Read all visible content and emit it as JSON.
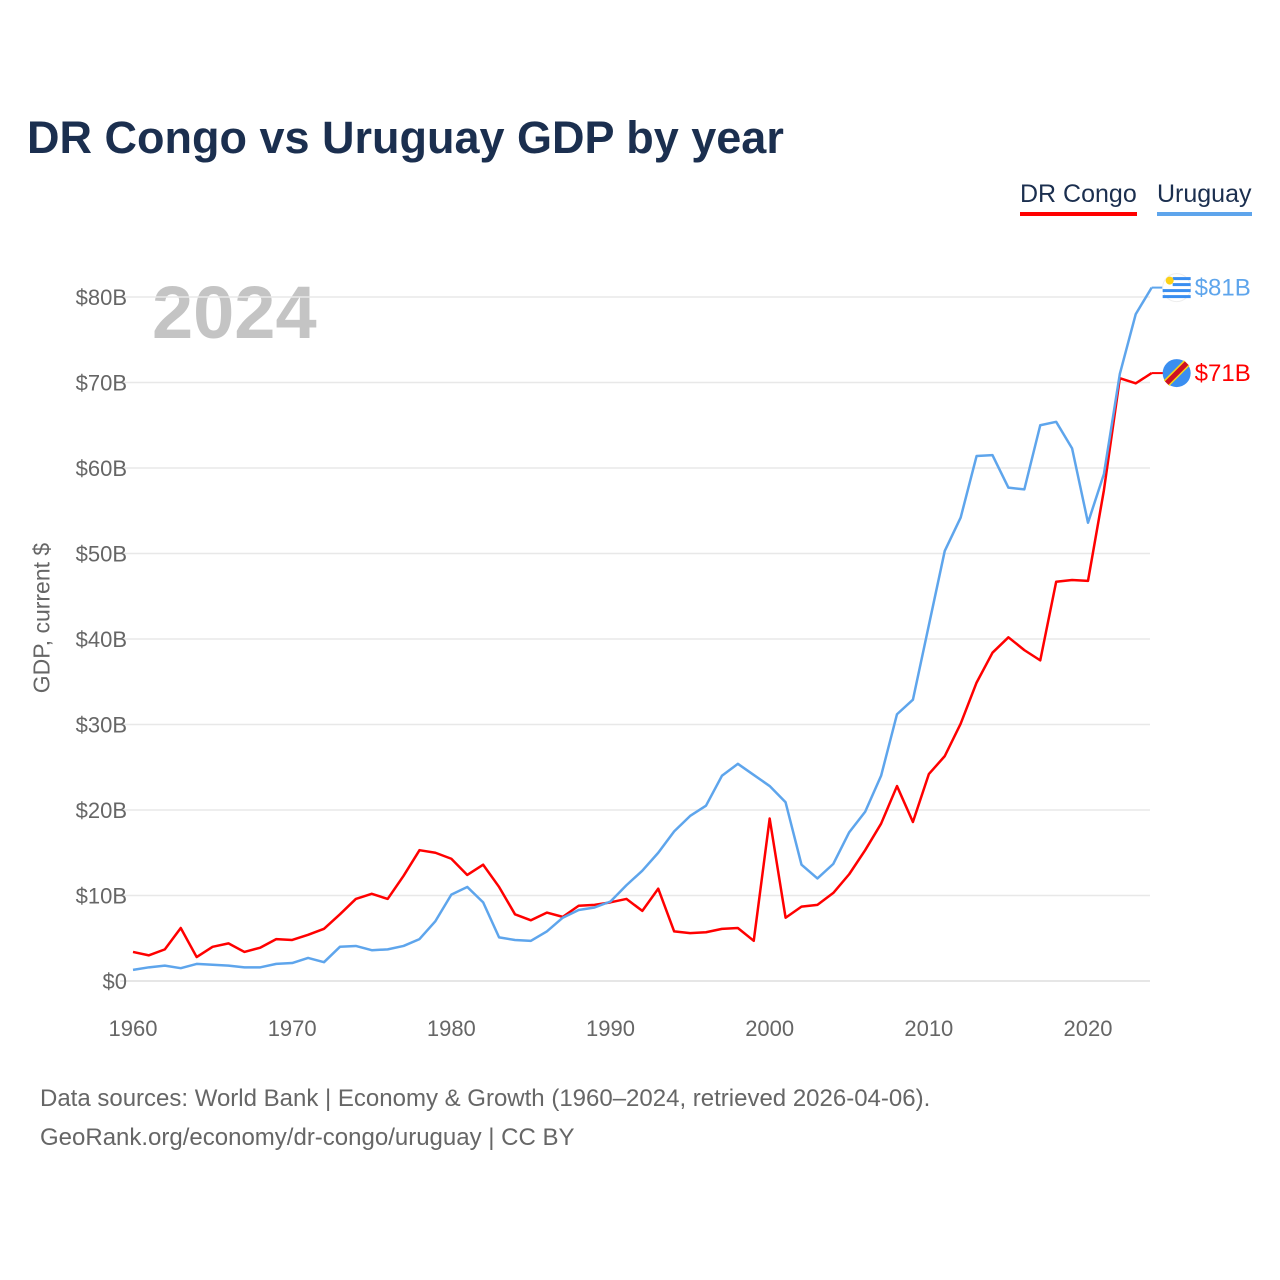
{
  "chart_data": {
    "type": "line",
    "title": "DR Congo vs Uruguay GDP by year",
    "ylabel": "GDP, current $",
    "xlabel": "",
    "current_year": "2024",
    "x_ticks": [
      "1960",
      "1970",
      "1980",
      "1990",
      "2000",
      "2010",
      "2020"
    ],
    "y_ticks": [
      "$0",
      "$10B",
      "$20B",
      "$30B",
      "$40B",
      "$50B",
      "$60B",
      "$70B",
      "$80B"
    ],
    "xlim": [
      1960,
      2024
    ],
    "ylim": [
      0,
      80
    ],
    "grid": true,
    "legend_placement": "top-right",
    "x": [
      1960,
      1961,
      1962,
      1963,
      1964,
      1965,
      1966,
      1967,
      1968,
      1969,
      1970,
      1971,
      1972,
      1973,
      1974,
      1975,
      1976,
      1977,
      1978,
      1979,
      1980,
      1981,
      1982,
      1983,
      1984,
      1985,
      1986,
      1987,
      1988,
      1989,
      1990,
      1991,
      1992,
      1993,
      1994,
      1995,
      1996,
      1997,
      1998,
      1999,
      2000,
      2001,
      2002,
      2003,
      2004,
      2005,
      2006,
      2007,
      2008,
      2009,
      2010,
      2011,
      2012,
      2013,
      2014,
      2015,
      2016,
      2017,
      2018,
      2019,
      2020,
      2021,
      2022,
      2023,
      2024
    ],
    "series": [
      {
        "name": "DR Congo",
        "color": "#ff0000",
        "end_label": "$71B",
        "values": [
          3.4,
          3.0,
          3.7,
          6.2,
          2.8,
          4.0,
          4.4,
          3.4,
          3.9,
          4.9,
          4.8,
          5.4,
          6.1,
          7.8,
          9.6,
          10.2,
          9.6,
          12.3,
          15.3,
          15.0,
          14.3,
          12.4,
          13.6,
          11.0,
          7.8,
          7.1,
          8.0,
          7.5,
          8.8,
          8.9,
          9.2,
          9.6,
          8.2,
          10.8,
          5.8,
          5.6,
          5.7,
          6.1,
          6.2,
          4.7,
          19.0,
          7.4,
          8.7,
          8.9,
          10.3,
          12.5,
          15.3,
          18.4,
          22.8,
          18.6,
          24.2,
          26.3,
          30.1,
          34.9,
          38.4,
          40.2,
          38.7,
          37.5,
          46.7,
          46.9,
          46.8,
          57.4,
          70.5,
          69.9,
          71.1
        ]
      },
      {
        "name": "Uruguay",
        "color": "#5ea5ec",
        "end_label": "$81B",
        "values": [
          1.3,
          1.6,
          1.8,
          1.5,
          2.0,
          1.9,
          1.8,
          1.6,
          1.6,
          2.0,
          2.1,
          2.7,
          2.2,
          4.0,
          4.1,
          3.6,
          3.7,
          4.1,
          4.9,
          7.0,
          10.1,
          11.0,
          9.2,
          5.1,
          4.8,
          4.7,
          5.8,
          7.4,
          8.3,
          8.6,
          9.3,
          11.2,
          12.9,
          15.0,
          17.5,
          19.3,
          20.5,
          24.0,
          25.4,
          24.1,
          22.8,
          20.9,
          13.6,
          12.0,
          13.7,
          17.4,
          19.8,
          24.0,
          31.2,
          32.9,
          41.6,
          50.3,
          54.2,
          61.4,
          61.5,
          57.7,
          57.5,
          65.0,
          65.4,
          62.3,
          53.6,
          59.3,
          71.0,
          78.0,
          81.1
        ]
      }
    ]
  },
  "footer": {
    "line1": "Data sources: World Bank | Economy & Growth (1960–2024, retrieved 2026-04-06).",
    "line2": "GeoRank.org/economy/dr-congo/uruguay | CC BY"
  }
}
